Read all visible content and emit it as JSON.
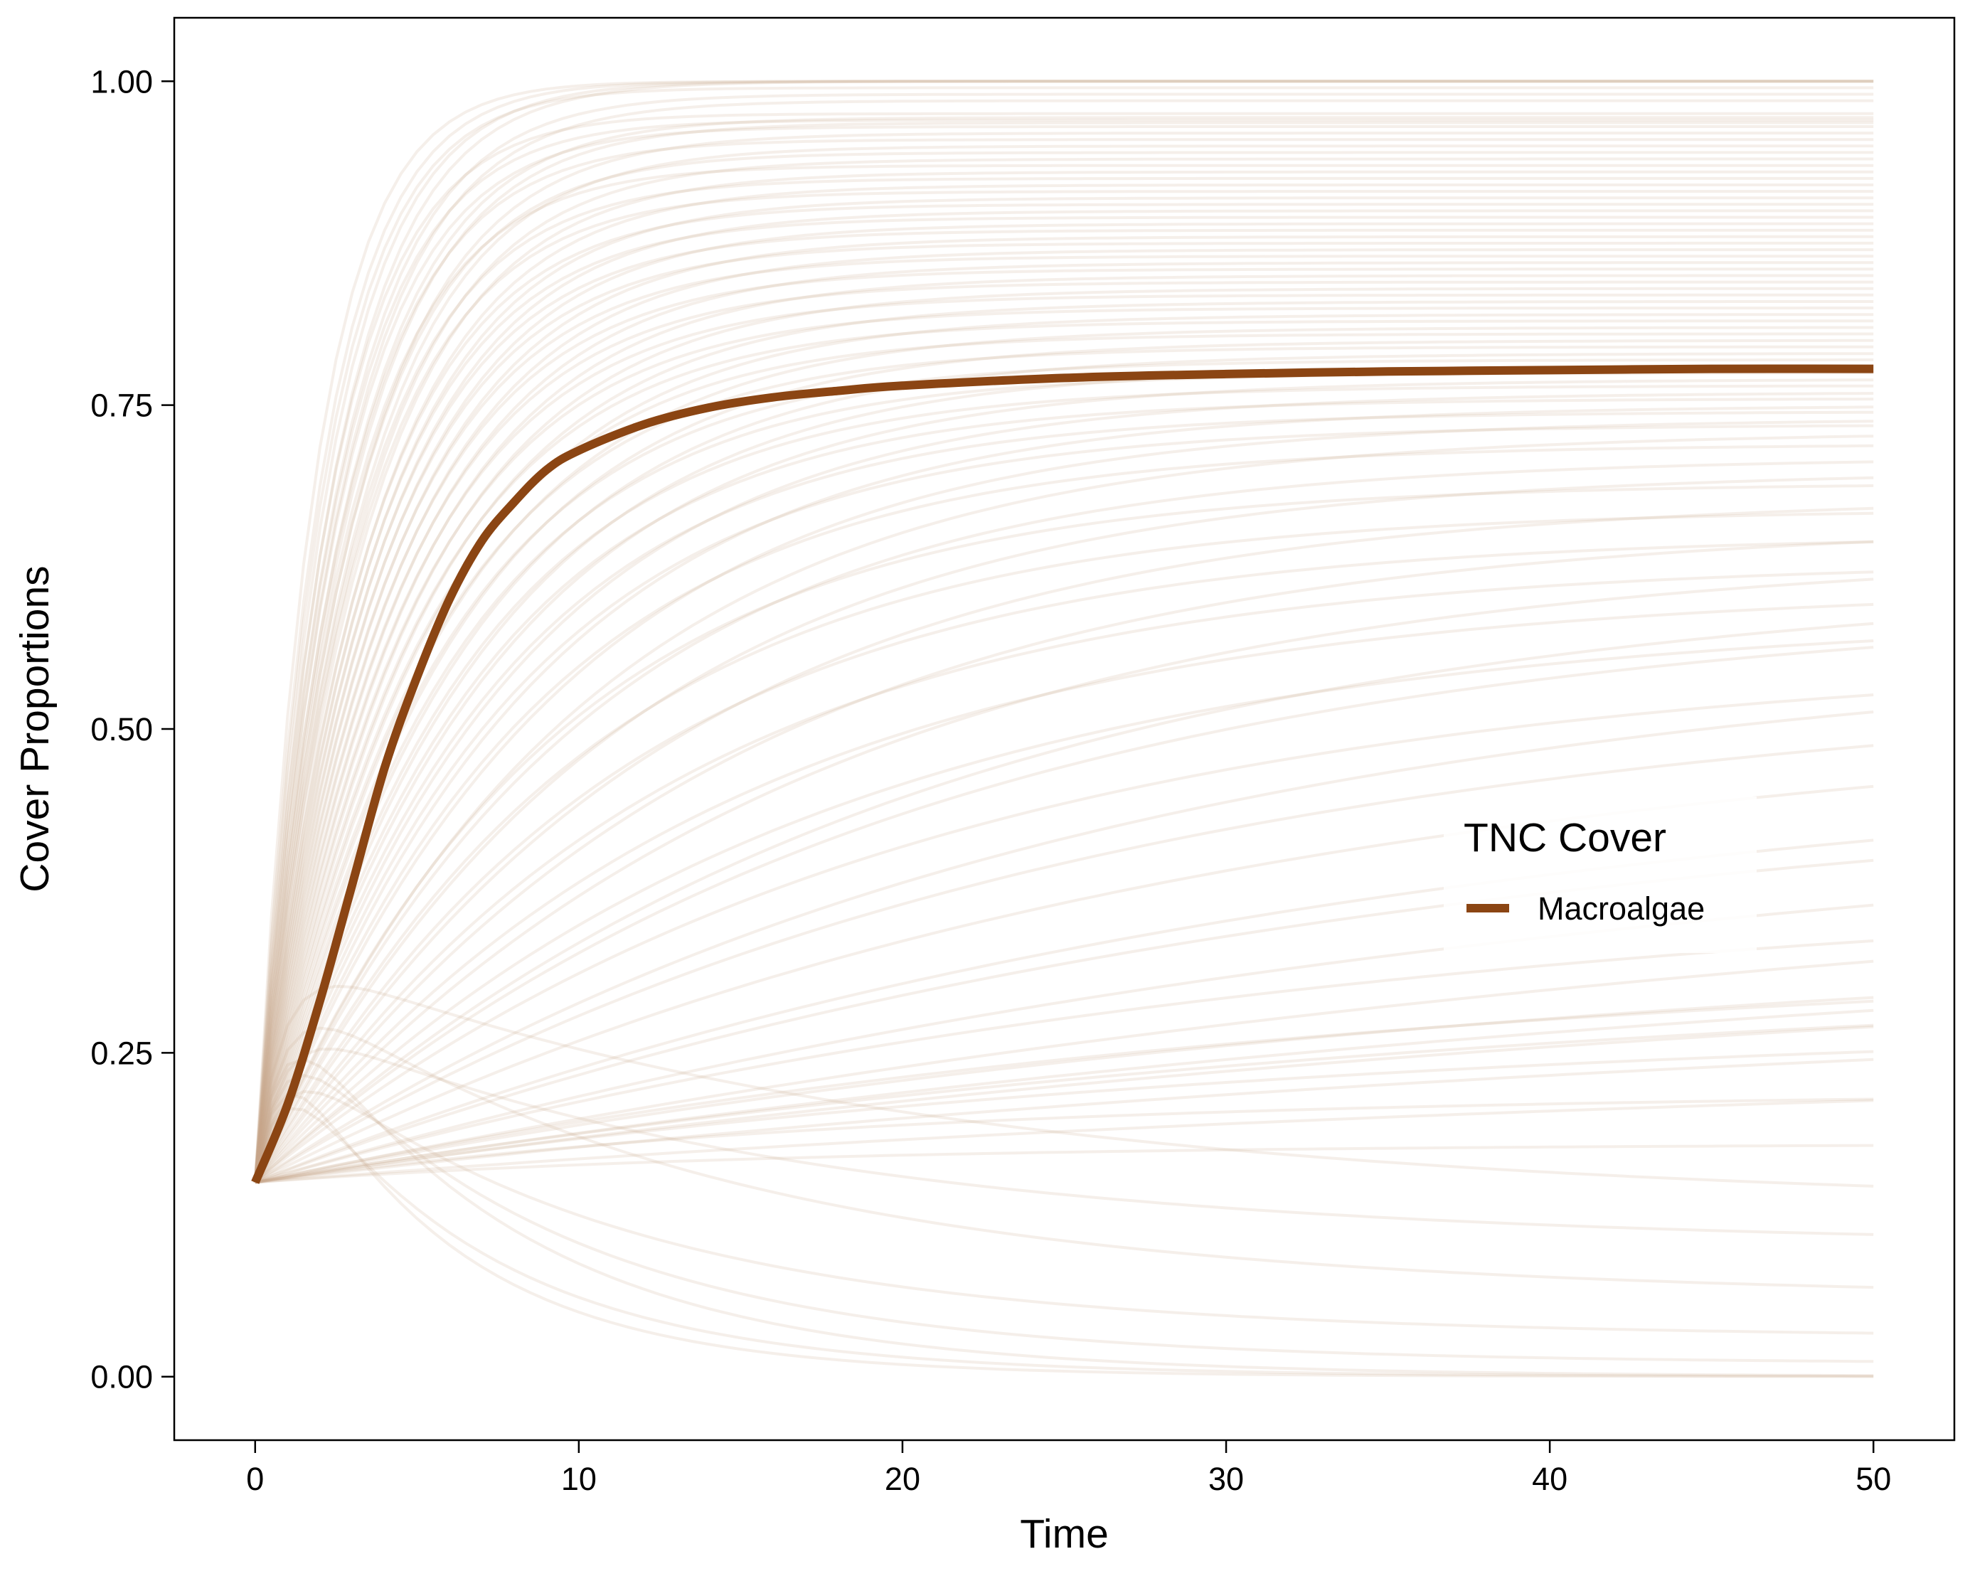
{
  "chart_data": {
    "type": "line",
    "title": "",
    "xlabel": "Time",
    "ylabel": "Cover Proportions",
    "xlim": [
      -2.5,
      52.5
    ],
    "ylim": [
      -0.049,
      1.049
    ],
    "x_ticks": [
      0,
      10,
      20,
      30,
      40,
      50
    ],
    "x_tick_labels": [
      "0",
      "10",
      "20",
      "30",
      "40",
      "50"
    ],
    "y_ticks": [
      0,
      0.25,
      0.5,
      0.75,
      1.0
    ],
    "y_tick_labels": [
      "0.00",
      "0.25",
      "0.50",
      "0.75",
      "1.00"
    ],
    "grid": false,
    "legend": {
      "title": "TNC Cover",
      "position": "right",
      "entries": [
        {
          "label": "Macroalgae",
          "color": "#8B4513"
        }
      ]
    },
    "initial_value": 0.15,
    "series": [
      {
        "name": "Macroalgae",
        "role": "mean trajectory",
        "color": "#8B4513",
        "x": [
          0,
          1,
          2,
          3,
          4,
          5,
          6,
          7,
          8,
          9,
          10,
          12,
          14,
          16,
          18,
          20,
          25,
          30,
          35,
          40,
          45,
          50
        ],
        "y": [
          0.15,
          0.21,
          0.29,
          0.38,
          0.47,
          0.54,
          0.6,
          0.645,
          0.675,
          0.7,
          0.715,
          0.735,
          0.748,
          0.756,
          0.761,
          0.765,
          0.771,
          0.774,
          0.776,
          0.777,
          0.778,
          0.778
        ]
      }
    ],
    "ensemble": {
      "description_color": "#C8A788",
      "opacity": 0.18,
      "final_values": [
        1.0,
        1.0,
        1.0,
        1.0,
        0.995,
        0.99,
        0.985,
        0.975,
        0.972,
        0.97,
        0.968,
        0.965,
        0.96,
        0.955,
        0.95,
        0.945,
        0.94,
        0.935,
        0.93,
        0.925,
        0.92,
        0.915,
        0.91,
        0.905,
        0.9,
        0.895,
        0.89,
        0.885,
        0.88,
        0.875,
        0.87,
        0.865,
        0.86,
        0.855,
        0.85,
        0.845,
        0.84,
        0.835,
        0.83,
        0.825,
        0.82,
        0.815,
        0.81,
        0.805,
        0.8,
        0.795,
        0.79,
        0.785,
        0.78,
        0.775,
        0.77,
        0.765,
        0.76,
        0.755,
        0.75,
        0.745,
        0.74,
        0.735,
        0.73,
        0.72,
        0.71,
        0.7,
        0.69,
        0.68,
        0.67,
        0.66,
        0.65,
        0.64,
        0.63,
        0.62,
        0.61,
        0.6,
        0.59,
        0.57,
        0.56,
        0.54,
        0.52,
        0.49,
        0.47,
        0.45,
        0.42,
        0.39,
        0.36,
        0.35,
        0.34,
        0.33,
        0.32,
        0.3,
        0.28,
        0.25,
        0.22,
        0.18,
        0.13,
        0.1,
        0.06,
        0.03,
        0.01,
        0.0,
        0.0,
        0.0
      ],
      "rates": [
        0.55,
        0.5,
        0.45,
        0.42,
        0.48,
        0.4,
        0.38,
        0.44,
        0.36,
        0.41,
        0.35,
        0.39,
        0.33,
        0.37,
        0.32,
        0.34,
        0.31,
        0.36,
        0.3,
        0.33,
        0.29,
        0.32,
        0.28,
        0.3,
        0.27,
        0.29,
        0.26,
        0.28,
        0.25,
        0.27,
        0.24,
        0.26,
        0.23,
        0.25,
        0.22,
        0.24,
        0.21,
        0.23,
        0.2,
        0.22,
        0.19,
        0.21,
        0.18,
        0.2,
        0.17,
        0.19,
        0.16,
        0.18,
        0.15,
        0.17,
        0.14,
        0.16,
        0.13,
        0.15,
        0.12,
        0.14,
        0.11,
        0.13,
        0.1,
        0.12,
        0.1,
        0.09,
        0.11,
        0.08,
        0.1,
        0.07,
        0.09,
        0.06,
        0.08,
        0.05,
        0.07,
        0.05,
        0.06,
        0.04,
        0.05,
        0.04,
        0.035,
        0.03,
        0.03,
        0.025,
        0.02,
        0.03,
        0.02,
        0.025,
        0.02,
        0.03,
        0.025,
        0.02,
        0.03,
        0.02,
        0.05,
        0.06,
        0.08,
        0.09,
        0.1,
        0.12,
        0.15,
        0.18,
        0.2,
        0.25
      ]
    }
  }
}
